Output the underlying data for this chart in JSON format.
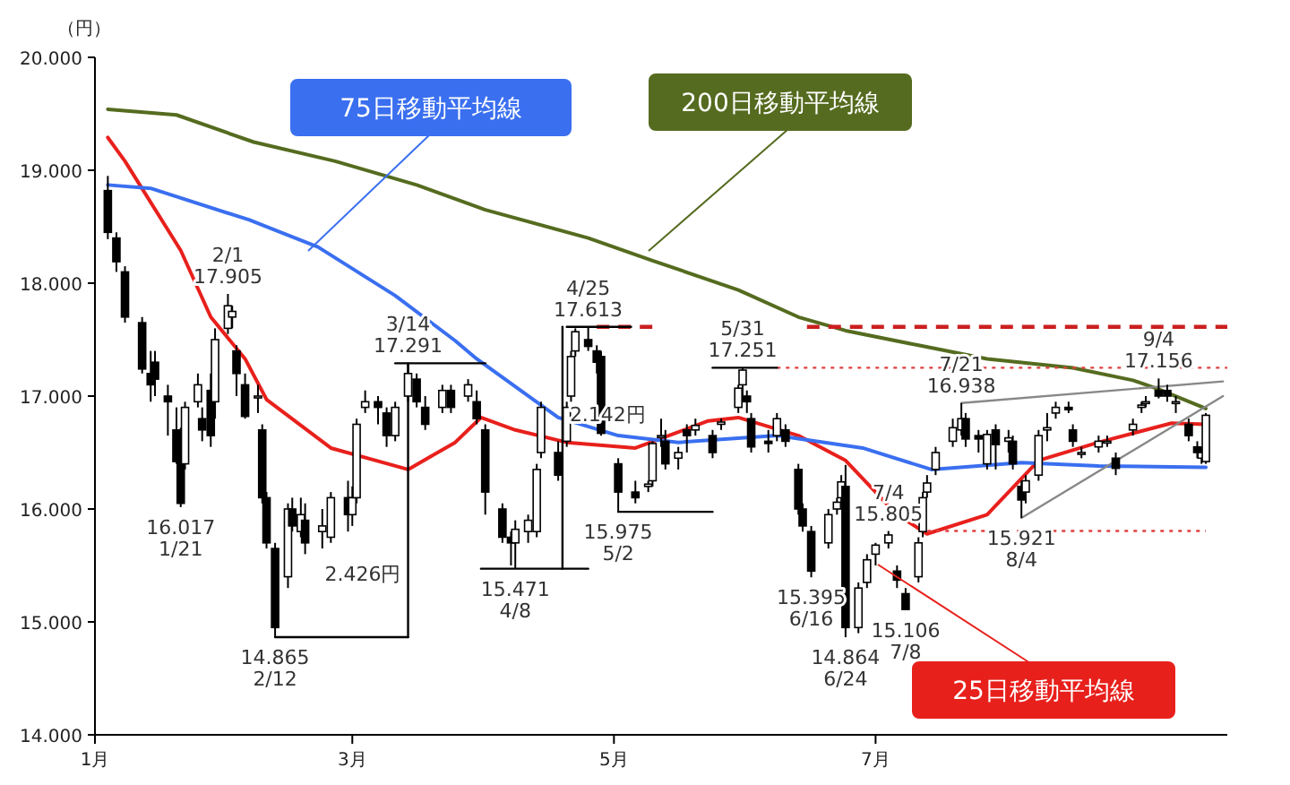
{
  "chart_data": {
    "type": "candlestick",
    "ylabel": "（円）",
    "ylim": [
      14000,
      20000
    ],
    "yticks": [
      {
        "value": 14000,
        "label": "14.000"
      },
      {
        "value": 15000,
        "label": "15.000"
      },
      {
        "value": 16000,
        "label": "16.000"
      },
      {
        "value": 17000,
        "label": "17.000"
      },
      {
        "value": 18000,
        "label": "18.000"
      },
      {
        "value": 19000,
        "label": "19.000"
      },
      {
        "value": 20000,
        "label": "20.000"
      }
    ],
    "xlim": [
      "--01-01",
      "--09-21"
    ],
    "xticks": [
      {
        "value": "--01-01",
        "label": "1月"
      },
      {
        "value": "--03-01",
        "label": "3月"
      },
      {
        "value": "--05-01",
        "label": "5月"
      },
      {
        "value": "--07-01",
        "label": "7月"
      }
    ],
    "grid": false,
    "x": [
      "--01-04",
      "--01-06",
      "--01-08",
      "--01-12",
      "--01-14",
      "--01-15",
      "--01-18",
      "--01-20",
      "--01-21",
      "--01-22",
      "--01-25",
      "--01-26",
      "--01-28",
      "--01-29",
      "--02-01",
      "--02-02",
      "--02-03",
      "--02-05",
      "--02-08",
      "--02-09",
      "--02-10",
      "--02-12",
      "--02-15",
      "--02-16",
      "--02-18",
      "--02-19",
      "--02-23",
      "--02-25",
      "--02-29",
      "--03-01",
      "--03-02",
      "--03-04",
      "--03-07",
      "--03-09",
      "--03-11",
      "--03-14",
      "--03-16",
      "--03-18",
      "--03-22",
      "--03-24",
      "--03-28",
      "--03-30",
      "--04-01",
      "--04-05",
      "--04-07",
      "--04-08",
      "--04-11",
      "--04-13",
      "--04-14",
      "--04-18",
      "--04-20",
      "--04-21",
      "--04-22",
      "--04-25",
      "--04-27",
      "--04-28",
      "--05-02",
      "--05-06",
      "--05-09",
      "--05-10",
      "--05-12",
      "--05-13",
      "--05-16",
      "--05-18",
      "--05-20",
      "--05-24",
      "--05-26",
      "--05-30",
      "--05-31",
      "--06-01",
      "--06-02",
      "--06-06",
      "--06-08",
      "--06-10",
      "--06-13",
      "--06-14",
      "--06-16",
      "--06-20",
      "--06-22",
      "--06-23",
      "--06-24",
      "--06-27",
      "--06-29",
      "--07-01",
      "--07-04",
      "--07-06",
      "--07-08",
      "--07-11",
      "--07-12",
      "--07-13",
      "--07-15",
      "--07-19",
      "--07-21",
      "--07-22",
      "--07-25",
      "--07-27",
      "--07-29",
      "--08-01",
      "--08-02",
      "--08-04",
      "--08-05",
      "--08-08",
      "--08-10",
      "--08-12",
      "--08-15",
      "--08-16",
      "--08-18",
      "--08-22",
      "--08-24",
      "--08-26",
      "--08-30",
      "--09-01",
      "--09-02",
      "--09-05",
      "--09-07",
      "--09-09",
      "--09-12",
      "--09-14",
      "--09-15",
      "--09-16"
    ],
    "ohlc": [
      [
        18820,
        18950,
        18390,
        18450
      ],
      [
        18400,
        18450,
        18100,
        18190
      ],
      [
        18100,
        18150,
        17650,
        17700
      ],
      [
        17650,
        17700,
        17200,
        17240
      ],
      [
        17200,
        17400,
        16950,
        17100
      ],
      [
        17300,
        17400,
        17000,
        17150
      ],
      [
        17000,
        17100,
        16650,
        16950
      ],
      [
        16700,
        16900,
        16400,
        16420
      ],
      [
        16700,
        16720,
        16017,
        16050
      ],
      [
        16400,
        16950,
        16350,
        16900
      ],
      [
        16950,
        17200,
        16900,
        17100
      ],
      [
        16800,
        16900,
        16600,
        16700
      ],
      [
        17050,
        17200,
        16550,
        16650
      ],
      [
        16950,
        17600,
        16800,
        17500
      ],
      [
        17600,
        17905,
        17550,
        17800
      ],
      [
        17700,
        17800,
        17600,
        17750
      ],
      [
        17400,
        17450,
        17000,
        17200
      ],
      [
        17100,
        17200,
        16800,
        16820
      ],
      [
        17000,
        17100,
        16850,
        17000
      ],
      [
        16700,
        16750,
        16050,
        16100
      ],
      [
        16100,
        16150,
        15650,
        15700
      ],
      [
        15650,
        15700,
        14865,
        14950
      ],
      [
        15400,
        16050,
        15300,
        16000
      ],
      [
        16000,
        16100,
        15800,
        15850
      ],
      [
        15800,
        16100,
        15750,
        15950
      ],
      [
        15900,
        16050,
        15600,
        15700
      ],
      [
        15800,
        16000,
        15650,
        15850
      ],
      [
        15750,
        16150,
        15700,
        16100
      ],
      [
        16100,
        16250,
        15800,
        15950
      ],
      [
        15950,
        16200,
        15850,
        16100
      ],
      [
        16100,
        16800,
        16050,
        16750
      ],
      [
        16900,
        17050,
        16850,
        16950
      ],
      [
        16950,
        17000,
        16750,
        16900
      ],
      [
        16850,
        16900,
        16550,
        16650
      ],
      [
        16650,
        16950,
        16600,
        16900
      ],
      [
        17000,
        17291,
        16950,
        17200
      ],
      [
        17150,
        17200,
        16900,
        16950
      ],
      [
        16900,
        17000,
        16700,
        16750
      ],
      [
        16900,
        17100,
        16850,
        17050
      ],
      [
        17050,
        17100,
        16850,
        16900
      ],
      [
        17000,
        17150,
        16950,
        17100
      ],
      [
        16950,
        17050,
        16750,
        16800
      ],
      [
        16700,
        16750,
        15950,
        16150
      ],
      [
        16000,
        16050,
        15700,
        15750
      ],
      [
        15750,
        15800,
        15500,
        15700
      ],
      [
        15700,
        15900,
        15471,
        15820
      ],
      [
        15800,
        15950,
        15700,
        15900
      ],
      [
        15800,
        16400,
        15750,
        16350
      ],
      [
        16500,
        16950,
        16450,
        16900
      ],
      [
        16500,
        16600,
        16250,
        16300
      ],
      [
        16600,
        16950,
        16550,
        16900
      ],
      [
        17000,
        17400,
        16950,
        17350
      ],
      [
        17400,
        17600,
        17350,
        17570
      ],
      [
        17500,
        17613,
        17400,
        17440
      ],
      [
        17400,
        17450,
        17200,
        17300
      ],
      [
        17350,
        17400,
        16650,
        16670
      ],
      [
        16400,
        16450,
        15975,
        16150
      ],
      [
        16150,
        16250,
        16050,
        16100
      ],
      [
        16200,
        16250,
        16150,
        16220
      ],
      [
        16250,
        16600,
        16200,
        16580
      ],
      [
        16650,
        16800,
        16550,
        16650
      ],
      [
        16600,
        16700,
        16350,
        16400
      ],
      [
        16450,
        16550,
        16350,
        16500
      ],
      [
        16700,
        16750,
        16500,
        16650
      ],
      [
        16700,
        16800,
        16650,
        16740
      ],
      [
        16650,
        16700,
        16450,
        16500
      ],
      [
        16750,
        16800,
        16700,
        16770
      ],
      [
        16900,
        17100,
        16850,
        17070
      ],
      [
        17100,
        17251,
        17000,
        17230
      ],
      [
        17000,
        17050,
        16850,
        16950
      ],
      [
        16800,
        16850,
        16500,
        16550
      ],
      [
        16600,
        16700,
        16500,
        16580
      ],
      [
        16650,
        16850,
        16600,
        16800
      ],
      [
        16700,
        16750,
        16550,
        16600
      ],
      [
        16350,
        16400,
        15950,
        16000
      ],
      [
        16000,
        16050,
        15800,
        15850
      ],
      [
        15800,
        15850,
        15395,
        15450
      ],
      [
        15700,
        16000,
        15650,
        15950
      ],
      [
        16000,
        16100,
        15950,
        16060
      ],
      [
        16100,
        16300,
        16050,
        16240
      ],
      [
        16200,
        16390,
        14864,
        14950
      ],
      [
        14950,
        15350,
        14900,
        15300
      ],
      [
        15350,
        15600,
        15300,
        15550
      ],
      [
        15600,
        15700,
        15500,
        15680
      ],
      [
        15700,
        15805,
        15650,
        15770
      ],
      [
        15450,
        15500,
        15300,
        15370
      ],
      [
        15250,
        15300,
        15106,
        15110
      ],
      [
        15400,
        15750,
        15350,
        15700
      ],
      [
        15800,
        16150,
        15750,
        16100
      ],
      [
        16150,
        16300,
        16100,
        16230
      ],
      [
        16350,
        16550,
        16300,
        16500
      ],
      [
        16600,
        16800,
        16550,
        16720
      ],
      [
        16700,
        16938,
        16650,
        16800
      ],
      [
        16800,
        16850,
        16550,
        16620
      ],
      [
        16650,
        16700,
        16500,
        16620
      ],
      [
        16400,
        16700,
        16350,
        16660
      ],
      [
        16700,
        16750,
        16350,
        16570
      ],
      [
        16600,
        16700,
        16500,
        16630
      ],
      [
        16600,
        16650,
        16350,
        16400
      ],
      [
        16200,
        16250,
        15921,
        16080
      ],
      [
        16150,
        16300,
        16050,
        16250
      ],
      [
        16300,
        16700,
        16250,
        16650
      ],
      [
        16700,
        16850,
        16600,
        16720
      ],
      [
        16850,
        16950,
        16800,
        16900
      ],
      [
        16900,
        16950,
        16850,
        16880
      ],
      [
        16700,
        16750,
        16550,
        16600
      ],
      [
        16500,
        16550,
        16450,
        16500
      ],
      [
        16550,
        16650,
        16500,
        16600
      ],
      [
        16600,
        16650,
        16550,
        16600
      ],
      [
        16450,
        16500,
        16300,
        16360
      ],
      [
        16700,
        16800,
        16650,
        16750
      ],
      [
        16900,
        16950,
        16850,
        16920
      ],
      [
        16950,
        17000,
        16900,
        16950
      ],
      [
        17050,
        17156,
        16980,
        17000
      ],
      [
        17050,
        17100,
        16950,
        17000
      ],
      [
        16950,
        17000,
        16850,
        16950
      ],
      [
        16750,
        16800,
        16600,
        16650
      ],
      [
        16550,
        16600,
        16450,
        16500
      ],
      [
        16450,
        16550,
        16400,
        16500
      ],
      [
        16420,
        16850,
        16400,
        16830
      ]
    ],
    "series": [
      {
        "type": "line",
        "name": "25日移動平均線",
        "color": "#e8201c",
        "x": [
          "--01-04",
          "--01-08",
          "--01-21",
          "--01-28",
          "--02-05",
          "--02-10",
          "--02-25",
          "--03-14",
          "--03-25",
          "--03-31",
          "--04-08",
          "--04-20",
          "--05-06",
          "--05-23",
          "--05-30",
          "--06-13",
          "--06-24",
          "--07-06",
          "--07-13",
          "--07-27",
          "--08-08",
          "--08-22",
          "--09-08",
          "--09-16"
        ],
        "values": [
          19290,
          19080,
          18290,
          17700,
          17330,
          16970,
          16540,
          16350,
          16590,
          16810,
          16700,
          16590,
          16540,
          16780,
          16810,
          16650,
          16430,
          15950,
          15780,
          15950,
          16430,
          16590,
          16760,
          16750
        ]
      },
      {
        "type": "line",
        "name": "75日移動平均線",
        "color": "#3a6ff0",
        "x": [
          "--01-04",
          "--01-14",
          "--02-06",
          "--02-22",
          "--03-11",
          "--03-25",
          "--03-30",
          "--04-18",
          "--05-02",
          "--05-16",
          "--06-08",
          "--06-28",
          "--07-14",
          "--08-04",
          "--08-22",
          "--09-16"
        ],
        "values": [
          18870,
          18840,
          18560,
          18320,
          17890,
          17490,
          17330,
          16810,
          16650,
          16590,
          16650,
          16540,
          16350,
          16410,
          16380,
          16370
        ]
      },
      {
        "type": "line",
        "name": "200日移動平均線",
        "color": "#556b1f",
        "x": [
          "--01-04",
          "--01-20",
          "--02-07",
          "--02-26",
          "--03-16",
          "--04-01",
          "--04-25",
          "--05-10",
          "--05-30",
          "--06-13",
          "--06-24",
          "--07-11",
          "--07-27",
          "--08-16",
          "--08-30",
          "--09-05",
          "--09-16"
        ],
        "values": [
          19540,
          19490,
          19250,
          19080,
          18870,
          18650,
          18400,
          18200,
          17940,
          17700,
          17580,
          17450,
          17330,
          17250,
          17140,
          17060,
          16890
        ]
      },
      {
        "type": "line",
        "color": "#888888",
        "x": [
          "--07-21",
          "--09-20"
        ],
        "values": [
          16938,
          17130
        ]
      },
      {
        "type": "line",
        "color": "#888888",
        "x": [
          "--08-04",
          "--09-20"
        ],
        "values": [
          15921,
          17000
        ]
      },
      {
        "type": "line",
        "color": "#cc1f1f",
        "line_style": "dashed",
        "x": [
          "--04-27",
          "--05-10"
        ],
        "values": [
          17613,
          17613
        ]
      },
      {
        "type": "line",
        "color": "#cc1f1f",
        "line_style": "dashed",
        "x": [
          "--06-15",
          "--09-21"
        ],
        "values": [
          17613,
          17613
        ]
      },
      {
        "type": "line",
        "color": "#e04040",
        "line_style": "dotted",
        "x": [
          "--06-08",
          "--09-21"
        ],
        "values": [
          17251,
          17251
        ]
      },
      {
        "type": "line",
        "color": "#e04040",
        "line_style": "dotted",
        "x": [
          "--07-11",
          "--09-16"
        ],
        "values": [
          15805,
          15805
        ]
      },
      {
        "type": "line",
        "color": "#000000",
        "x": [
          "--02-12",
          "--03-14"
        ],
        "values": [
          14865,
          14865
        ]
      },
      {
        "type": "line",
        "color": "#000000",
        "x": [
          "--03-11",
          "--04-01"
        ],
        "values": [
          17291,
          17291
        ]
      },
      {
        "type": "line",
        "color": "#000000",
        "x": [
          "--03-31",
          "--04-25"
        ],
        "values": [
          15471,
          15471
        ]
      },
      {
        "type": "line",
        "color": "#000000",
        "x": [
          "--04-20",
          "--05-05"
        ],
        "values": [
          17613,
          17613
        ]
      },
      {
        "type": "line",
        "color": "#000000",
        "x": [
          "--05-02",
          "--05-24"
        ],
        "values": [
          15975,
          15975
        ]
      },
      {
        "type": "line",
        "color": "#000000",
        "x": [
          "--05-24",
          "--06-08"
        ],
        "values": [
          17251,
          17251
        ]
      },
      {
        "type": "line",
        "color": "#000000",
        "x": [
          "--03-14",
          "--03-14"
        ],
        "values": [
          14865,
          17291
        ]
      },
      {
        "type": "line",
        "color": "#000000",
        "x": [
          "--04-19",
          "--04-19"
        ],
        "values": [
          15471,
          17613
        ]
      }
    ],
    "annotations": [
      {
        "text": "16.017 1/21",
        "x": "--01-21",
        "y": 16017
      },
      {
        "text": "2/1 17.905",
        "x": "--02-01",
        "y": 17905
      },
      {
        "text": "14.865 2/12",
        "x": "--02-12",
        "y": 14865
      },
      "2.426円",
      {
        "text": "3/14 17.291",
        "x": "--03-14",
        "y": 17291
      },
      {
        "text": "15.471 4/8",
        "x": "--04-08",
        "y": 15471
      },
      {
        "text": "4/25 17.613",
        "x": "--04-25",
        "y": 17613
      },
      "2.142円",
      {
        "text": "15.975 5/2",
        "x": "--05-02",
        "y": 15975
      },
      {
        "text": "5/31 17.251",
        "x": "--05-31",
        "y": 17251
      },
      {
        "text": "15.395 6/16",
        "x": "--06-16",
        "y": 15395
      },
      {
        "text": "14.864 6/24",
        "x": "--06-24",
        "y": 14864
      },
      {
        "text": "7/4 15.805",
        "x": "--07-04",
        "y": 15805
      },
      {
        "text": "15.106 7/8",
        "x": "--07-08",
        "y": 15106
      },
      {
        "text": "7/21 16.938",
        "x": "--07-21",
        "y": 16938
      },
      {
        "text": "15.921 8/4",
        "x": "--08-04",
        "y": 15921
      },
      {
        "text": "9/4 17.156",
        "x": "--09-05",
        "y": 17156
      }
    ]
  }
}
